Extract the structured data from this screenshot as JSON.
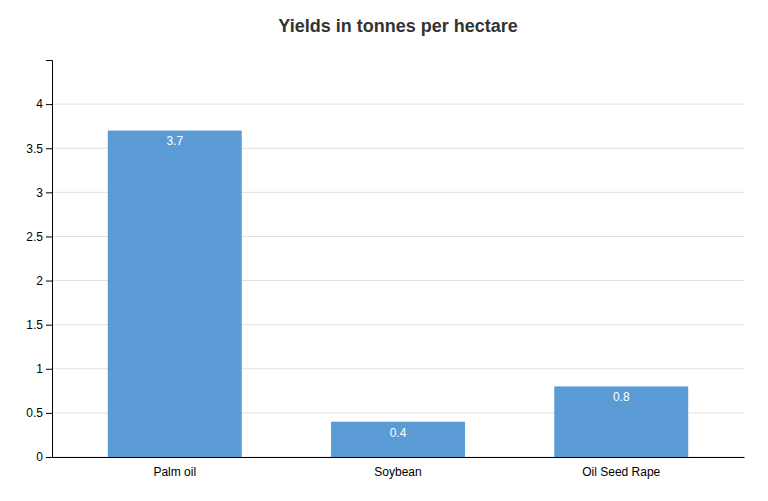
{
  "chart_data": {
    "type": "bar",
    "title": "Yields in tonnes per hectare",
    "categories": [
      "Palm oil",
      "Soybean",
      "Oil Seed Rape"
    ],
    "values": [
      3.7,
      0.4,
      0.8
    ],
    "color": "#5B9BD5",
    "ylim": [
      0,
      4.5
    ],
    "yticks": [
      0,
      0.5,
      1,
      1.5,
      2,
      2.5,
      3,
      3.5,
      4
    ],
    "grid": true,
    "data_labels": true
  }
}
